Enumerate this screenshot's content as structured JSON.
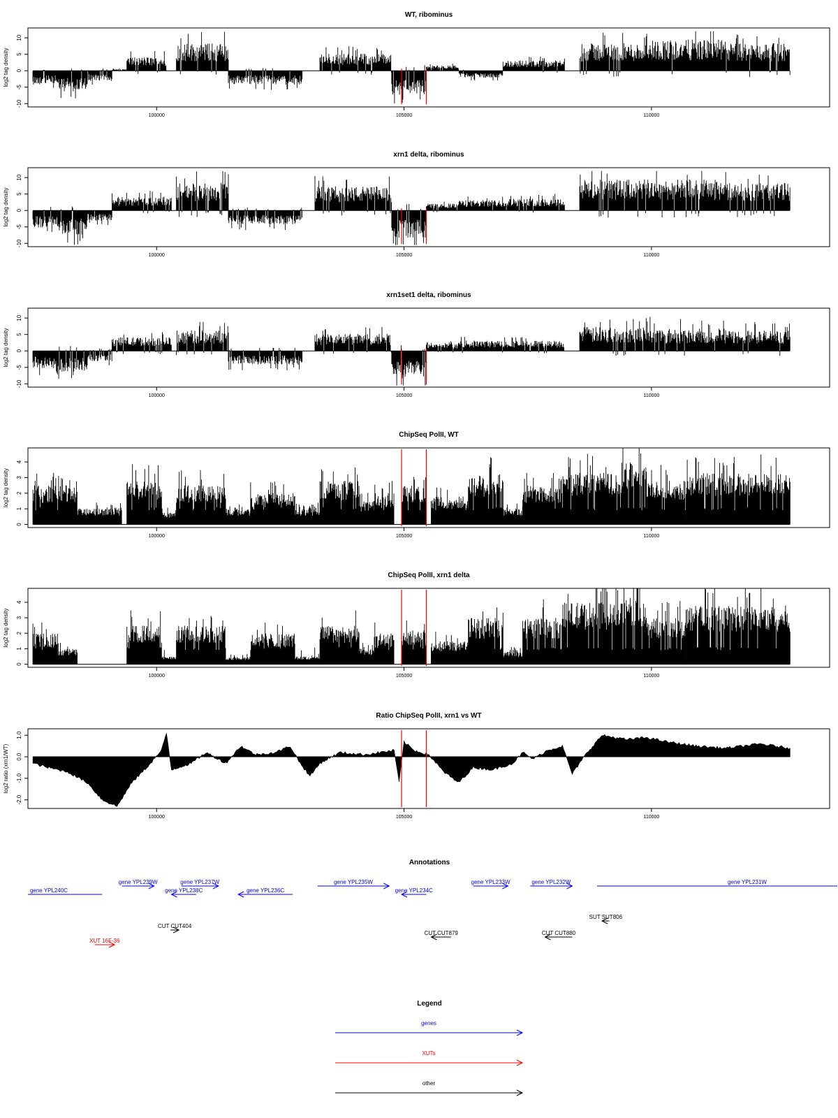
{
  "chart_data": {
    "type": "multi-panel genome browser",
    "x_axis": {
      "ticks": [
        100000,
        105000,
        110000
      ],
      "xlim": [
        97400,
        113600
      ],
      "data_range": [
        97500,
        112800
      ]
    },
    "highlight_lines": {
      "color": "#ff0000",
      "x": [
        104950,
        105450
      ]
    },
    "panels": [
      {
        "id": "wt-ribominus",
        "title": "WT, ribominus",
        "type": "bar",
        "ylabel": "log2 tag density",
        "ylim": [
          -11,
          13
        ],
        "yticks": [
          -10,
          -5,
          0,
          5,
          10
        ],
        "series": [
          {
            "kind": "signed_bars",
            "segments": [
              [
                97500,
                98000,
                -4
              ],
              [
                98000,
                98600,
                -6
              ],
              [
                98600,
                99100,
                -3
              ],
              [
                99100,
                99400,
                0.5
              ],
              [
                99400,
                100200,
                4
              ],
              [
                100400,
                101450,
                8
              ],
              [
                101450,
                102950,
                -4
              ],
              [
                103300,
                104750,
                5
              ],
              [
                104750,
                105450,
                -7
              ],
              [
                105450,
                106100,
                1.5
              ],
              [
                106100,
                107000,
                -2
              ],
              [
                107000,
                108250,
                3
              ],
              [
                108550,
                110000,
                8
              ],
              [
                110000,
                111500,
                9
              ],
              [
                111500,
                112800,
                8
              ]
            ]
          }
        ]
      },
      {
        "id": "xrn1-ribominus",
        "title": "xrn1 delta, ribominus",
        "type": "bar",
        "ylabel": "log2 tag density",
        "ylim": [
          -11,
          13
        ],
        "yticks": [
          -10,
          -5,
          0,
          5,
          10
        ],
        "series": [
          {
            "kind": "signed_bars",
            "segments": [
              [
                97500,
                98000,
                -5
              ],
              [
                98000,
                98600,
                -7
              ],
              [
                98600,
                99100,
                -3
              ],
              [
                99100,
                100300,
                4
              ],
              [
                100400,
                101450,
                8
              ],
              [
                101450,
                102950,
                -4
              ],
              [
                103200,
                104750,
                7
              ],
              [
                104750,
                105450,
                -8
              ],
              [
                105450,
                106100,
                2
              ],
              [
                106100,
                107000,
                3
              ],
              [
                107000,
                108250,
                3.5
              ],
              [
                108550,
                110000,
                9
              ],
              [
                110000,
                111500,
                9
              ],
              [
                111500,
                112800,
                8
              ]
            ]
          }
        ]
      },
      {
        "id": "xrn1set1-ribominus",
        "title": "xrn1set1 delta, ribominus",
        "type": "bar",
        "ylabel": "log2 tag density",
        "ylim": [
          -11,
          13
        ],
        "yticks": [
          -10,
          -5,
          0,
          5,
          10
        ],
        "series": [
          {
            "kind": "signed_bars",
            "segments": [
              [
                97500,
                98000,
                -5
              ],
              [
                98000,
                98600,
                -6
              ],
              [
                98600,
                99100,
                -3
              ],
              [
                99100,
                100300,
                4
              ],
              [
                100400,
                101450,
                6
              ],
              [
                101450,
                102950,
                -4
              ],
              [
                103200,
                104750,
                5
              ],
              [
                104750,
                105450,
                -8
              ],
              [
                105450,
                106100,
                2
              ],
              [
                106100,
                107000,
                3
              ],
              [
                107000,
                108250,
                3
              ],
              [
                108550,
                110000,
                7
              ],
              [
                110000,
                111500,
                6.5
              ],
              [
                111500,
                112800,
                6
              ]
            ]
          }
        ]
      },
      {
        "id": "chipseq-wt",
        "title": "ChipSeq PolII, WT",
        "type": "bar",
        "ylabel": "log2 tag density",
        "ylim": [
          -0.2,
          4.9
        ],
        "yticks": [
          0,
          1,
          2,
          3,
          4
        ],
        "series": [
          {
            "kind": "positive_bars",
            "segments": [
              [
                97500,
                98400,
                2.5
              ],
              [
                98400,
                99300,
                1
              ],
              [
                99400,
                100100,
                2.8
              ],
              [
                100100,
                100400,
                0.8
              ],
              [
                100400,
                101400,
                2.5
              ],
              [
                101400,
                101900,
                1
              ],
              [
                101900,
                102800,
                2
              ],
              [
                102800,
                103300,
                1
              ],
              [
                103300,
                104100,
                2.8
              ],
              [
                104100,
                104400,
                1.5
              ],
              [
                104400,
                104800,
                2
              ],
              [
                104950,
                105450,
                2.5
              ],
              [
                105550,
                106300,
                1.8
              ],
              [
                106300,
                107000,
                3.2
              ],
              [
                107000,
                107400,
                1
              ],
              [
                107400,
                108200,
                2.5
              ],
              [
                108200,
                109400,
                3.3
              ],
              [
                109400,
                109900,
                4
              ],
              [
                109900,
                110700,
                2.8
              ],
              [
                110700,
                112800,
                3.3
              ]
            ]
          }
        ]
      },
      {
        "id": "chipseq-xrn1",
        "title": "ChipSeq PolII, xrn1 delta",
        "type": "bar",
        "ylabel": "log2 tag density",
        "ylim": [
          -0.2,
          4.9
        ],
        "yticks": [
          0,
          1,
          2,
          3,
          4
        ],
        "series": [
          {
            "kind": "positive_bars",
            "segments": [
              [
                97500,
                98000,
                2
              ],
              [
                98000,
                98400,
                1
              ],
              [
                99400,
                100100,
                2.5
              ],
              [
                100100,
                100400,
                0.5
              ],
              [
                100400,
                101400,
                2.5
              ],
              [
                101400,
                101900,
                0.5
              ],
              [
                101900,
                102800,
                2
              ],
              [
                102800,
                103300,
                0.5
              ],
              [
                103300,
                104100,
                2.5
              ],
              [
                104100,
                104400,
                1
              ],
              [
                104400,
                104800,
                2
              ],
              [
                104950,
                105450,
                2.2
              ],
              [
                105550,
                106300,
                1.5
              ],
              [
                106300,
                107000,
                3
              ],
              [
                107000,
                107400,
                0.8
              ],
              [
                107400,
                108200,
                3
              ],
              [
                108200,
                109400,
                4
              ],
              [
                109400,
                109900,
                4.3
              ],
              [
                109900,
                110700,
                3
              ],
              [
                110700,
                112800,
                3.8
              ]
            ]
          }
        ]
      },
      {
        "id": "ratio",
        "title": "Ratio ChipSeq PolII, xrn1 vs WT",
        "type": "area",
        "ylabel": "log2 ratio (xrn1/WT)",
        "ylim": [
          -2.4,
          1.3
        ],
        "yticks": [
          -2.0,
          -1.0,
          0.0,
          1.0
        ],
        "series": [
          {
            "kind": "profile",
            "points": [
              [
                97500,
                -0.3
              ],
              [
                97800,
                -0.5
              ],
              [
                98200,
                -0.7
              ],
              [
                98600,
                -1.2
              ],
              [
                98900,
                -2.0
              ],
              [
                99200,
                -2.3
              ],
              [
                99500,
                -1.2
              ],
              [
                99800,
                -0.5
              ],
              [
                100100,
                0.3
              ],
              [
                100200,
                1.1
              ],
              [
                100300,
                -0.6
              ],
              [
                100700,
                -0.3
              ],
              [
                101000,
                0.2
              ],
              [
                101400,
                -0.3
              ],
              [
                101700,
                0.5
              ],
              [
                102000,
                0.1
              ],
              [
                102400,
                0.2
              ],
              [
                102700,
                0.5
              ],
              [
                102900,
                -0.3
              ],
              [
                103100,
                -0.9
              ],
              [
                103300,
                -0.3
              ],
              [
                103700,
                0.2
              ],
              [
                104200,
                0.1
              ],
              [
                104500,
                0.2
              ],
              [
                104800,
                0.3
              ],
              [
                104900,
                -1.2
              ],
              [
                105000,
                0.7
              ],
              [
                105200,
                0.3
              ],
              [
                105500,
                0.1
              ],
              [
                105800,
                -0.7
              ],
              [
                106100,
                -1.2
              ],
              [
                106400,
                -0.5
              ],
              [
                106800,
                -0.6
              ],
              [
                107200,
                -0.3
              ],
              [
                107400,
                0.2
              ],
              [
                107600,
                -0.1
              ],
              [
                107900,
                0.3
              ],
              [
                108200,
                0.5
              ],
              [
                108400,
                -0.8
              ],
              [
                108700,
                0.2
              ],
              [
                109000,
                1.0
              ],
              [
                109500,
                0.8
              ],
              [
                109900,
                0.9
              ],
              [
                110300,
                0.7
              ],
              [
                110900,
                0.5
              ],
              [
                111500,
                0.4
              ],
              [
                112200,
                0.6
              ],
              [
                112800,
                0.4
              ]
            ]
          }
        ]
      }
    ],
    "annotations": {
      "title": "Annotations",
      "features": [
        {
          "label": "gene YPL240C",
          "category": "genes",
          "strand": "-",
          "start": 97400,
          "end": 98900,
          "row": 2
        },
        {
          "label": "gene YPL239W",
          "category": "genes",
          "strand": "+",
          "start": 99300,
          "end": 99950,
          "row": 1
        },
        {
          "label": "gene YPL238C",
          "category": "genes",
          "strand": "-",
          "start": 100300,
          "end": 100800,
          "row": 2
        },
        {
          "label": "gene YPL237W",
          "category": "genes",
          "strand": "+",
          "start": 100500,
          "end": 101250,
          "row": 1
        },
        {
          "label": "gene YPL236C",
          "category": "genes",
          "strand": "-",
          "start": 101650,
          "end": 102750,
          "row": 2
        },
        {
          "label": "gene YPL235W",
          "category": "genes",
          "strand": "+",
          "start": 103250,
          "end": 104700,
          "row": 1
        },
        {
          "label": "gene YPL234C",
          "category": "genes",
          "strand": "-",
          "start": 104950,
          "end": 105450,
          "row": 2
        },
        {
          "label": "gene YPL233W",
          "category": "genes",
          "strand": "+",
          "start": 106400,
          "end": 107100,
          "row": 1
        },
        {
          "label": "gene YPL232W",
          "category": "genes",
          "strand": "+",
          "start": 107550,
          "end": 108400,
          "row": 1
        },
        {
          "label": "gene YPL231W",
          "category": "genes",
          "strand": "+",
          "start": 108900,
          "end": 113600,
          "row": 1
        },
        {
          "label": "SUT SUT806",
          "category": "other",
          "strand": "-",
          "start": 109000,
          "end": 109150,
          "row": 3
        },
        {
          "label": "CUT CUT404",
          "category": "other",
          "strand": "+",
          "start": 100280,
          "end": 100450,
          "row": 4
        },
        {
          "label": "CUT CUT879",
          "category": "other",
          "strand": "-",
          "start": 105550,
          "end": 105950,
          "row": 5
        },
        {
          "label": "CUT CUT880",
          "category": "other",
          "strand": "-",
          "start": 107850,
          "end": 108400,
          "row": 5
        },
        {
          "label": "XUT 16F-36",
          "category": "XUTs",
          "strand": "+",
          "start": 98750,
          "end": 99150,
          "row": 6
        }
      ]
    },
    "legend": {
      "title": "Legend",
      "items": [
        {
          "label": "genes",
          "color": "#0000ff"
        },
        {
          "label": "XUTs",
          "color": "#ff0000"
        },
        {
          "label": "other",
          "color": "#000000"
        }
      ]
    }
  }
}
